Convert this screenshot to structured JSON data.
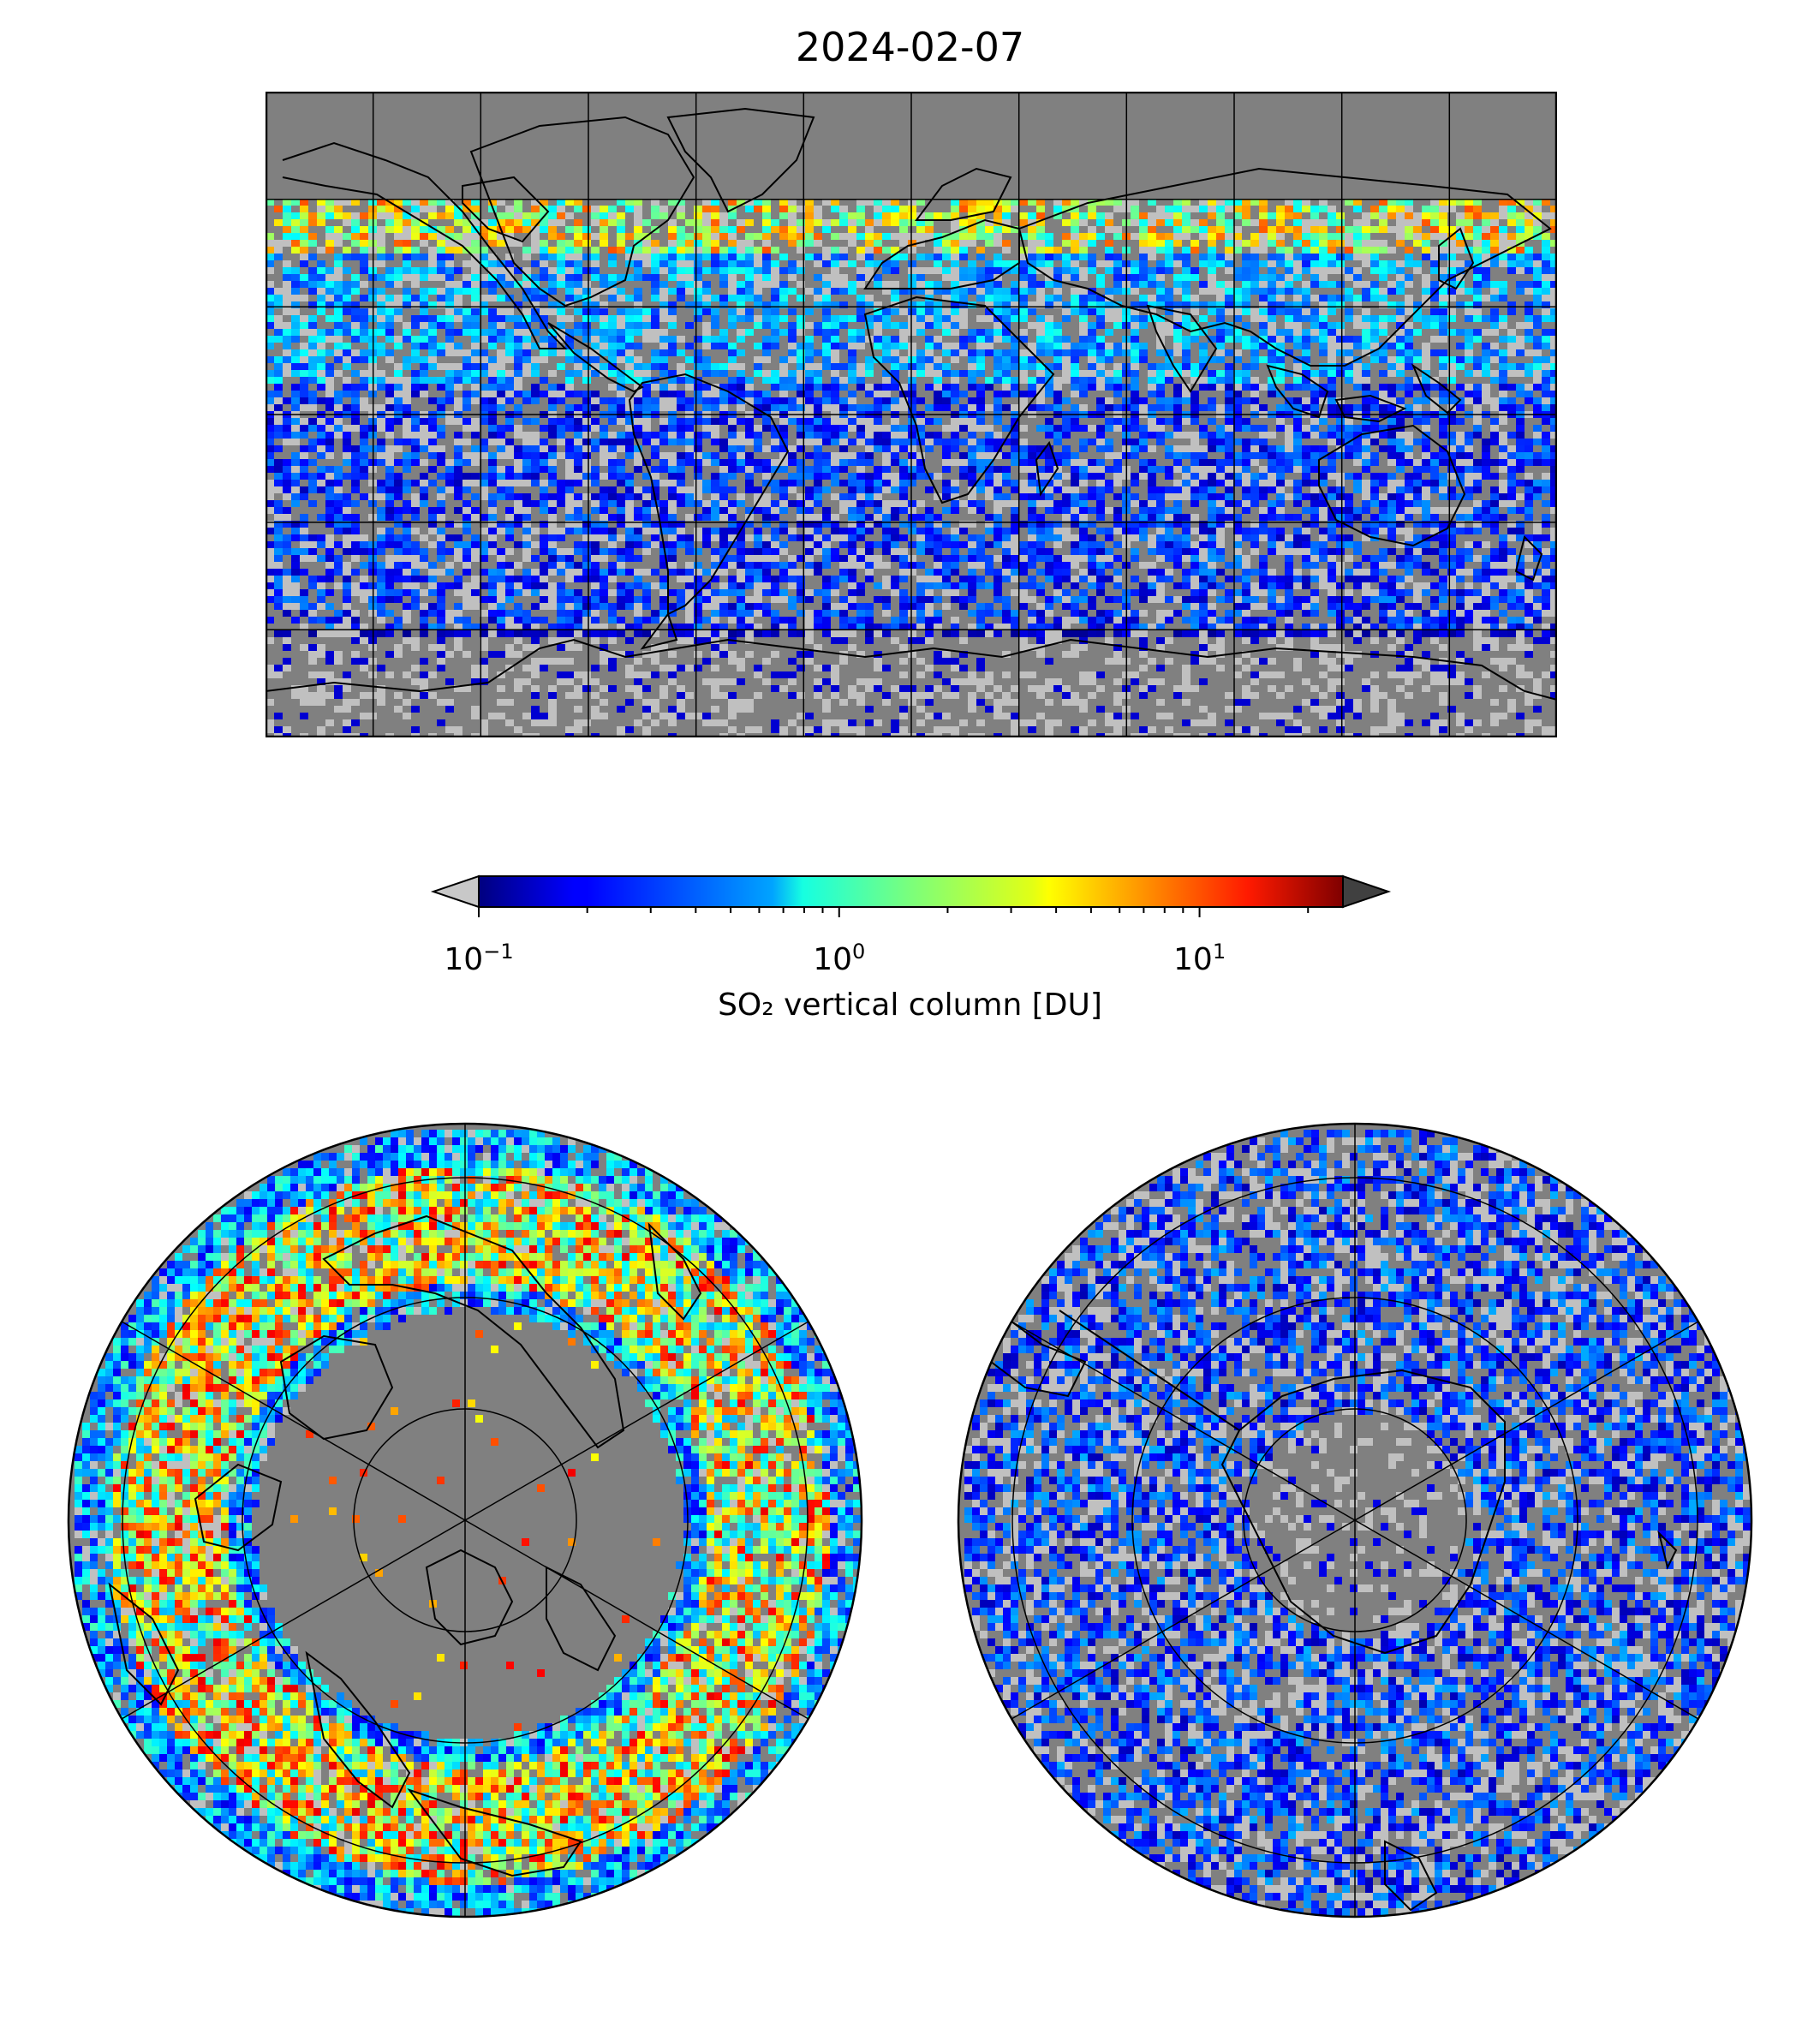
{
  "title": "2024-02-07",
  "colorbar": {
    "label": "SO₂ vertical column [DU]",
    "scale": "log",
    "range": [
      0.1,
      25
    ],
    "ticks": [
      {
        "value": 0.1,
        "base": "10",
        "exp": "−1"
      },
      {
        "value": 1,
        "base": "10",
        "exp": "0"
      },
      {
        "value": 10,
        "base": "10",
        "exp": "1"
      }
    ],
    "colormap": "jet",
    "under_color": "#c8c8c8",
    "over_color": "#404040"
  },
  "map": {
    "background": "#808080",
    "coast_color": "#000000",
    "grid_color": "#000000",
    "no_data_light": "#c0c0c0",
    "global_grid": {
      "lon_step": 30,
      "lat_step": 30
    }
  }
}
